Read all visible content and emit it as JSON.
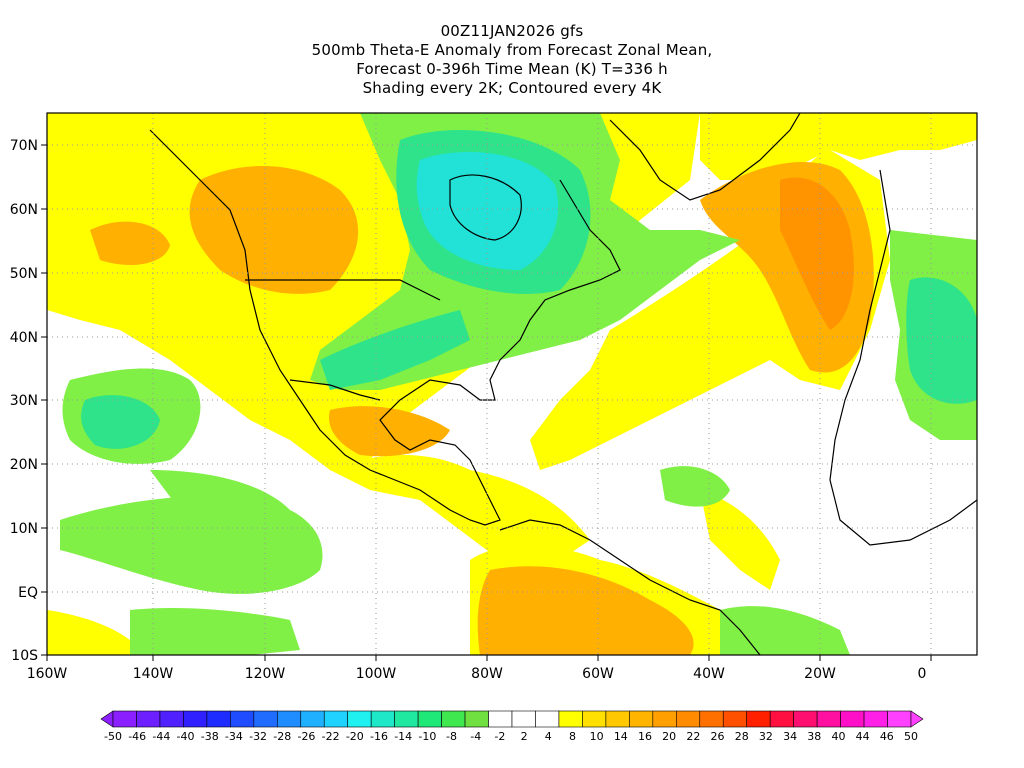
{
  "titles": {
    "line1": "00Z11JAN2026 gfs",
    "line2": "500mb Theta-E Anomaly from Forecast Zonal Mean,",
    "line3": "Forecast 0-396h Time Mean (K) T=336 h",
    "line4": "Shading every 2K; Contoured every 4K"
  },
  "axes": {
    "lat_labels": [
      "70N",
      "60N",
      "50N",
      "40N",
      "30N",
      "20N",
      "10N",
      "EQ",
      "10S"
    ],
    "lon_labels": [
      "160W",
      "140W",
      "120W",
      "100W",
      "80W",
      "60W",
      "40W",
      "20W",
      "0"
    ]
  },
  "colorbar": {
    "labels": [
      "-50",
      "-46",
      "-44",
      "-40",
      "-38",
      "-34",
      "-32",
      "-28",
      "-26",
      "-22",
      "-20",
      "-16",
      "-14",
      "-10",
      "-8",
      "-4",
      "-2",
      "2",
      "4",
      "8",
      "10",
      "14",
      "16",
      "20",
      "22",
      "26",
      "28",
      "32",
      "34",
      "38",
      "40",
      "44",
      "46",
      "50"
    ],
    "colors": [
      "#8c1fff",
      "#6e1fff",
      "#5020ff",
      "#3020ff",
      "#1f2cff",
      "#1f4cff",
      "#1f6cff",
      "#1f8cff",
      "#1fb0ff",
      "#1fd2ff",
      "#1ff0f0",
      "#1fe8c8",
      "#20e8a0",
      "#20e878",
      "#40e850",
      "#70e040",
      "#ffffff",
      "#ffffff",
      "#ffffff",
      "#ffff00",
      "#ffe000",
      "#ffc800",
      "#ffb400",
      "#ffa000",
      "#ff8c00",
      "#ff7000",
      "#ff5000",
      "#ff2000",
      "#ff1040",
      "#ff1070",
      "#ff10a0",
      "#ff10c8",
      "#ff20e8",
      "#ff40ff"
    ]
  },
  "colors": {
    "yellow": "#ffff00",
    "orange": "#ffb000",
    "dark_orange": "#ff9400",
    "green": "#80ef46",
    "teal_green": "#2ee38a",
    "cyan": "#22e2d8",
    "grid": "#999999"
  }
}
